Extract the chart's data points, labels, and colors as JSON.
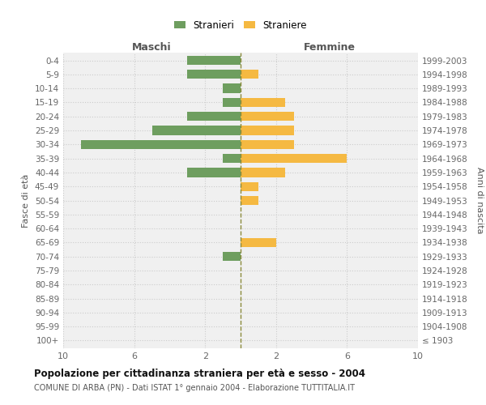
{
  "age_groups": [
    "100+",
    "95-99",
    "90-94",
    "85-89",
    "80-84",
    "75-79",
    "70-74",
    "65-69",
    "60-64",
    "55-59",
    "50-54",
    "45-49",
    "40-44",
    "35-39",
    "30-34",
    "25-29",
    "20-24",
    "15-19",
    "10-14",
    "5-9",
    "0-4"
  ],
  "birth_years": [
    "≤ 1903",
    "1904-1908",
    "1909-1913",
    "1914-1918",
    "1919-1923",
    "1924-1928",
    "1929-1933",
    "1934-1938",
    "1939-1943",
    "1944-1948",
    "1949-1953",
    "1954-1958",
    "1959-1963",
    "1964-1968",
    "1969-1973",
    "1974-1978",
    "1979-1983",
    "1984-1988",
    "1989-1993",
    "1994-1998",
    "1999-2003"
  ],
  "males": [
    0,
    0,
    0,
    0,
    0,
    0,
    1,
    0,
    0,
    0,
    0,
    0,
    3,
    1,
    9,
    5,
    3,
    1,
    1,
    3,
    3
  ],
  "females": [
    0,
    0,
    0,
    0,
    0,
    0,
    0,
    2,
    0,
    0,
    1,
    1,
    2.5,
    6,
    3,
    3,
    3,
    2.5,
    0,
    1,
    0
  ],
  "male_color": "#6e9e5f",
  "female_color": "#f5b942",
  "dashed_line_color": "#8a8a3a",
  "grid_color": "#cccccc",
  "title": "Popolazione per cittadinanza straniera per età e sesso - 2004",
  "subtitle": "COMUNE DI ARBA (PN) - Dati ISTAT 1° gennaio 2004 - Elaborazione TUTTITALIA.IT",
  "header_left": "Maschi",
  "header_right": "Femmine",
  "ylabel_left": "Fasce di età",
  "ylabel_right": "Anni di nascita",
  "legend_stranieri": "Stranieri",
  "legend_straniere": "Straniere",
  "xlim": 10,
  "background_color": "#ffffff",
  "plot_bg_color": "#f0f0f0"
}
